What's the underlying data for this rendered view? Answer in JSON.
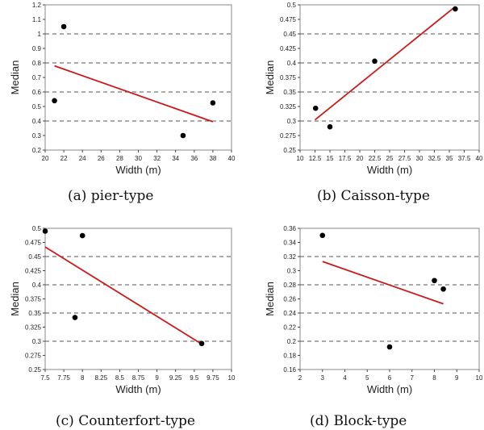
{
  "chart_data": [
    {
      "type": "scatter",
      "caption": "(a)  pier-type",
      "xlabel": "Width (m)",
      "ylabel": "Median",
      "xlim": [
        20,
        40
      ],
      "ylim": [
        0.2,
        1.2
      ],
      "x_ticks": [
        "20",
        "22",
        "24",
        "26",
        "28",
        "30",
        "32",
        "34",
        "36",
        "38",
        "40"
      ],
      "y_ticks": [
        "0.2",
        "0.3",
        "0.4",
        "0.5",
        "0.6",
        "0.7",
        "0.8",
        "0.9",
        "1",
        "1.1",
        "1.2"
      ],
      "gridlines_y": [
        0.4,
        0.6,
        0.8,
        1.0
      ],
      "points": [
        {
          "x": 21.0,
          "y": 0.54
        },
        {
          "x": 22.0,
          "y": 1.05
        },
        {
          "x": 34.8,
          "y": 0.3
        },
        {
          "x": 38.0,
          "y": 0.525
        }
      ],
      "fit_line": {
        "x": [
          21,
          38
        ],
        "y": [
          0.78,
          0.395
        ]
      }
    },
    {
      "type": "scatter",
      "caption": "(b)  Caisson-type",
      "xlabel": "Width (m)",
      "ylabel": "Median",
      "xlim": [
        10,
        40
      ],
      "ylim": [
        0.25,
        0.5
      ],
      "x_ticks": [
        "10",
        "12.5",
        "15",
        "17.5",
        "20",
        "22.5",
        "25",
        "27.5",
        "30",
        "32.5",
        "35",
        "37.5",
        "40"
      ],
      "y_ticks": [
        "0.25",
        "0.275",
        "0.3",
        "0.325",
        "0.35",
        "0.375",
        "0.4",
        "0.425",
        "0.45",
        "0.475",
        "0.5"
      ],
      "gridlines_y": [
        0.3,
        0.35,
        0.4,
        0.45
      ],
      "points": [
        {
          "x": 12.6,
          "y": 0.322
        },
        {
          "x": 15.0,
          "y": 0.29
        },
        {
          "x": 22.5,
          "y": 0.403
        },
        {
          "x": 36.0,
          "y": 0.493
        }
      ],
      "fit_line": {
        "x": [
          12.5,
          36.0
        ],
        "y": [
          0.302,
          0.497
        ]
      }
    },
    {
      "type": "scatter",
      "caption": "(c)  Counterfort-type",
      "xlabel": "Width (m)",
      "ylabel": "Median",
      "xlim": [
        7.5,
        10
      ],
      "ylim": [
        0.25,
        0.5
      ],
      "x_ticks": [
        "7.5",
        "7.75",
        "8",
        "8.25",
        "8.5",
        "8.75",
        "9",
        "9.25",
        "9.5",
        "9.75",
        "10"
      ],
      "y_ticks": [
        "0.25",
        "0.275",
        "0.3",
        "0.325",
        "0.35",
        "0.375",
        "0.4",
        "0.425",
        "0.45",
        "0.475",
        "0.5"
      ],
      "gridlines_y": [
        0.3,
        0.35,
        0.4,
        0.45
      ],
      "points": [
        {
          "x": 7.5,
          "y": 0.495
        },
        {
          "x": 7.9,
          "y": 0.342
        },
        {
          "x": 8.0,
          "y": 0.487
        },
        {
          "x": 9.6,
          "y": 0.296
        }
      ],
      "fit_line": {
        "x": [
          7.5,
          9.6
        ],
        "y": [
          0.467,
          0.295
        ]
      }
    },
    {
      "type": "scatter",
      "caption": "(d)  Block-type",
      "xlabel": "Width (m)",
      "ylabel": "Median",
      "xlim": [
        2,
        10
      ],
      "ylim": [
        0.16,
        0.36
      ],
      "x_ticks": [
        "2",
        "3",
        "4",
        "5",
        "6",
        "7",
        "8",
        "9",
        "10"
      ],
      "y_ticks": [
        "0.16",
        "0.18",
        "0.2",
        "0.22",
        "0.24",
        "0.26",
        "0.28",
        "0.3",
        "0.32",
        "0.34",
        "0.36"
      ],
      "gridlines_y": [
        0.2,
        0.24,
        0.28,
        0.32
      ],
      "points": [
        {
          "x": 3.0,
          "y": 0.35
        },
        {
          "x": 6.0,
          "y": 0.192
        },
        {
          "x": 8.0,
          "y": 0.286
        },
        {
          "x": 8.4,
          "y": 0.274
        }
      ],
      "fit_line": {
        "x": [
          3.0,
          8.4
        ],
        "y": [
          0.313,
          0.253
        ]
      }
    }
  ],
  "style": {
    "point_color": "#000000",
    "line_color": "#cc1a1a",
    "grid_color": "#555555",
    "frame_color": "#8a8a8a"
  }
}
